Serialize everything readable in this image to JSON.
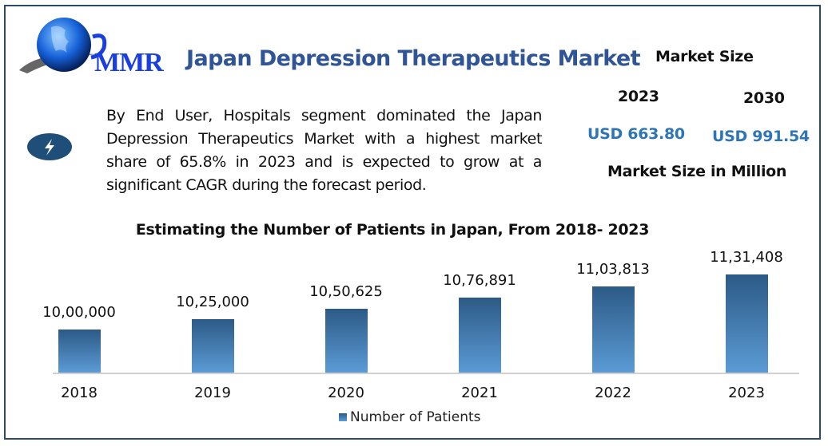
{
  "header": {
    "logo_text": "MMR",
    "title": "Japan Depression Therapeutics Market"
  },
  "description": "By End User, Hospitals segment dominated the Japan Depression Therapeutics Market with a highest market share of 65.8% in 2023 and is expected to grow at a significant CAGR during the forecast period.",
  "market": {
    "heading": "Market Size",
    "year1": "2023",
    "year2": "2030",
    "value1": "USD 663.80",
    "value2": "USD 991.54",
    "unit": "Market Size in Million"
  },
  "colors": {
    "accent": "#2e75b6",
    "title": "#2f5597",
    "bar_top": "#2c5a86",
    "bar_bottom": "#5b9bd5"
  },
  "chart_data": {
    "type": "bar",
    "title": "Estimating the Number of Patients in Japan, From 2018- 2023",
    "categories": [
      "2018",
      "2019",
      "2020",
      "2021",
      "2022",
      "2023"
    ],
    "values": [
      1000000,
      1025000,
      1050625,
      1076891,
      1103813,
      1131408
    ],
    "labels": [
      "10,00,000",
      "10,25,000",
      "10,50,625",
      "10,76,891",
      "11,03,813",
      "11,31,408"
    ],
    "series_name": "Number of Patients",
    "ylim": [
      896000,
      1140000
    ],
    "legend": "bottom"
  }
}
